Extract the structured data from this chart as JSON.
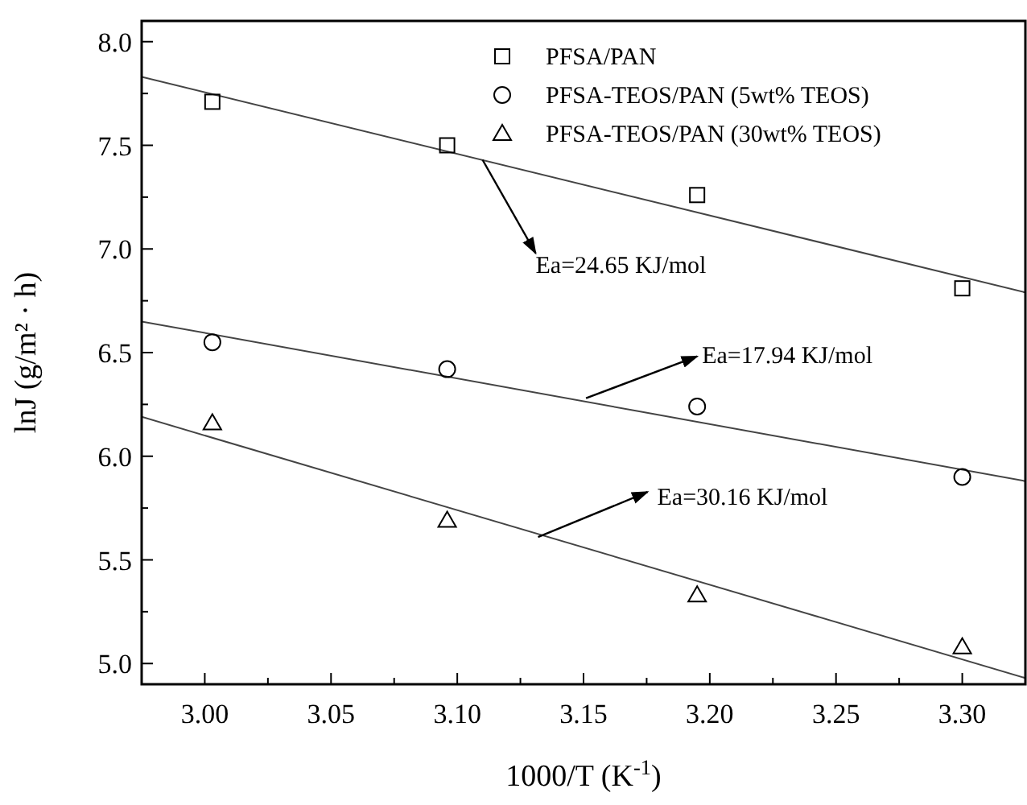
{
  "chart_data": {
    "type": "scatter",
    "xlabel": "1000/T (K$^{-1}$)",
    "ylabel": "lnJ (g/m² · h)",
    "xlim": [
      2.975,
      3.325
    ],
    "ylim": [
      4.9,
      8.1
    ],
    "xticks": [
      {
        "value": 3,
        "label": "3.00"
      },
      {
        "value": 3.025,
        "label": null
      },
      {
        "value": 3.05,
        "label": "3.05"
      },
      {
        "value": 3.075,
        "label": null
      },
      {
        "value": 3.1,
        "label": "3.10"
      },
      {
        "value": 3.125,
        "label": null
      },
      {
        "value": 3.15,
        "label": "3.15"
      },
      {
        "value": 3.175,
        "label": null
      },
      {
        "value": 3.2,
        "label": "3.20"
      },
      {
        "value": 3.225,
        "label": null
      },
      {
        "value": 3.25,
        "label": "3.25"
      },
      {
        "value": 3.275,
        "label": null
      },
      {
        "value": 3.3,
        "label": "3.30"
      }
    ],
    "yticks": [
      {
        "value": 5,
        "label": "5.0"
      },
      {
        "value": 5.25,
        "label": null
      },
      {
        "value": 5.5,
        "label": "5.5"
      },
      {
        "value": 5.75,
        "label": null
      },
      {
        "value": 6,
        "label": "6.0"
      },
      {
        "value": 6.25,
        "label": null
      },
      {
        "value": 6.5,
        "label": "6.5"
      },
      {
        "value": 6.75,
        "label": null
      },
      {
        "value": 7,
        "label": "7.0"
      },
      {
        "value": 7.25,
        "label": null
      },
      {
        "value": 7.5,
        "label": "7.5"
      },
      {
        "value": 7.75,
        "label": null
      },
      {
        "value": 8,
        "label": "8.0"
      }
    ],
    "grid": false,
    "legend": "top right",
    "series": [
      {
        "name": "PFSA/PAN",
        "color": "#000000",
        "marker": "square",
        "x": [
          3.003,
          3.096,
          3.195,
          3.3
        ],
        "values": [
          7.71,
          7.5,
          7.26,
          6.81
        ]
      },
      {
        "name": "PFSA-TEOS/PAN (5wt% TEOS)",
        "color": "#000000",
        "marker": "circle",
        "x": [
          3.003,
          3.096,
          3.195,
          3.3
        ],
        "values": [
          6.55,
          6.42,
          6.24,
          5.9
        ]
      },
      {
        "name": "PFSA-TEOS/PAN (30wt% TEOS)",
        "color": "#000000",
        "marker": "triangle",
        "x": [
          3.003,
          3.096,
          3.195,
          3.3
        ],
        "values": [
          6.16,
          5.69,
          5.33,
          5.08
        ]
      },
      {
        "type": "line",
        "color": "#444444",
        "x": [
          2.975,
          3.325
        ],
        "values": [
          7.83,
          6.79
        ]
      },
      {
        "type": "line",
        "color": "#444444",
        "x": [
          2.975,
          3.325
        ],
        "values": [
          6.65,
          5.88
        ]
      },
      {
        "type": "line",
        "color": "#444444",
        "x": [
          2.975,
          3.325
        ],
        "values": [
          6.19,
          4.93
        ]
      }
    ],
    "annotations": [
      {
        "text": "Ea=24.65 KJ/mol",
        "x": 3.11,
        "y": 7.43
      },
      {
        "text": "Ea=17.94 KJ/mol",
        "x": 3.151,
        "y": 6.28
      },
      {
        "text": "Ea=30.16 KJ/mol",
        "x": 3.132,
        "y": 5.61
      }
    ]
  }
}
